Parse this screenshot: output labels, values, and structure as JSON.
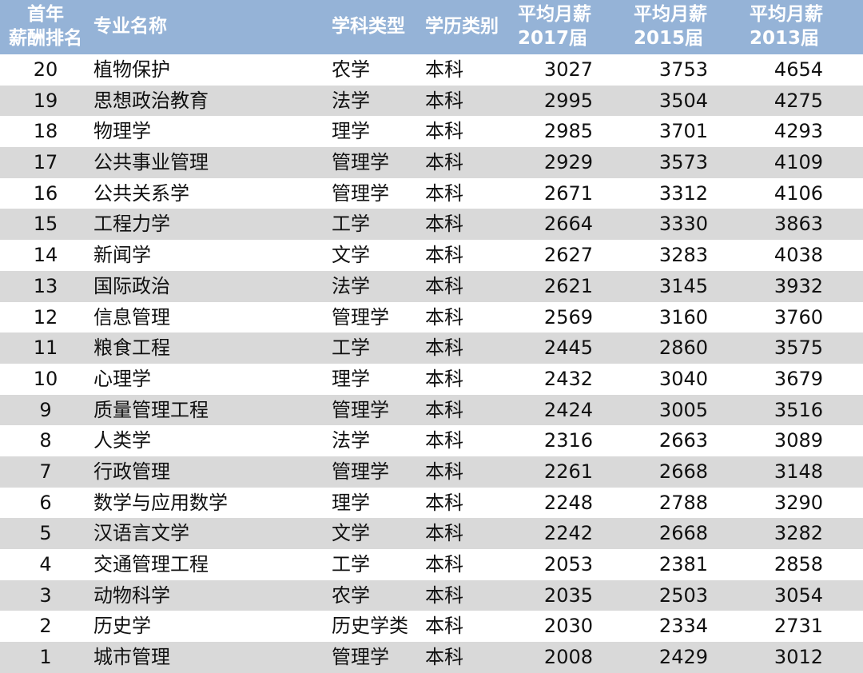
{
  "header": {
    "rank_line1": "首年",
    "rank_line2": "薪酬排名",
    "name": "专业名称",
    "type": "学科类型",
    "edu": "学历类别",
    "y17_line1": "平均月薪",
    "y17_line2": "2017届",
    "y15_line1": "平均月薪",
    "y15_line2": "2015届",
    "y13_line1": "平均月薪",
    "y13_line2": "2013届"
  },
  "colors": {
    "header_bg": "#95b3d7",
    "alt_row": "#d9d9d9"
  },
  "rows": [
    {
      "rank": "20",
      "name": "植物保护",
      "type": "农学",
      "edu": "本科",
      "y17": "3027",
      "y15": "3753",
      "y13": "4654"
    },
    {
      "rank": "19",
      "name": "思想政治教育",
      "type": "法学",
      "edu": "本科",
      "y17": "2995",
      "y15": "3504",
      "y13": "4275"
    },
    {
      "rank": "18",
      "name": "物理学",
      "type": "理学",
      "edu": "本科",
      "y17": "2985",
      "y15": "3701",
      "y13": "4293"
    },
    {
      "rank": "17",
      "name": "公共事业管理",
      "type": "管理学",
      "edu": "本科",
      "y17": "2929",
      "y15": "3573",
      "y13": "4109"
    },
    {
      "rank": "16",
      "name": "公共关系学",
      "type": "管理学",
      "edu": "本科",
      "y17": "2671",
      "y15": "3312",
      "y13": "4106"
    },
    {
      "rank": "15",
      "name": "工程力学",
      "type": "工学",
      "edu": "本科",
      "y17": "2664",
      "y15": "3330",
      "y13": "3863"
    },
    {
      "rank": "14",
      "name": "新闻学",
      "type": "文学",
      "edu": "本科",
      "y17": "2627",
      "y15": "3283",
      "y13": "4038"
    },
    {
      "rank": "13",
      "name": "国际政治",
      "type": "法学",
      "edu": "本科",
      "y17": "2621",
      "y15": "3145",
      "y13": "3932"
    },
    {
      "rank": "12",
      "name": "信息管理",
      "type": "管理学",
      "edu": "本科",
      "y17": "2569",
      "y15": "3160",
      "y13": "3760"
    },
    {
      "rank": "11",
      "name": "粮食工程",
      "type": "工学",
      "edu": "本科",
      "y17": "2445",
      "y15": "2860",
      "y13": "3575"
    },
    {
      "rank": "10",
      "name": "心理学",
      "type": "理学",
      "edu": "本科",
      "y17": "2432",
      "y15": "3040",
      "y13": "3679"
    },
    {
      "rank": "9",
      "name": "质量管理工程",
      "type": "管理学",
      "edu": "本科",
      "y17": "2424",
      "y15": "3005",
      "y13": "3516"
    },
    {
      "rank": "8",
      "name": "人类学",
      "type": "法学",
      "edu": "本科",
      "y17": "2316",
      "y15": "2663",
      "y13": "3089"
    },
    {
      "rank": "7",
      "name": "行政管理",
      "type": "管理学",
      "edu": "本科",
      "y17": "2261",
      "y15": "2668",
      "y13": "3148"
    },
    {
      "rank": "6",
      "name": "数学与应用数学",
      "type": "理学",
      "edu": "本科",
      "y17": "2248",
      "y15": "2788",
      "y13": "3290"
    },
    {
      "rank": "5",
      "name": "汉语言文学",
      "type": "文学",
      "edu": "本科",
      "y17": "2242",
      "y15": "2668",
      "y13": "3282"
    },
    {
      "rank": "4",
      "name": "交通管理工程",
      "type": "工学",
      "edu": "本科",
      "y17": "2053",
      "y15": "2381",
      "y13": "2858"
    },
    {
      "rank": "3",
      "name": "动物科学",
      "type": "农学",
      "edu": "本科",
      "y17": "2035",
      "y15": "2503",
      "y13": "3054"
    },
    {
      "rank": "2",
      "name": "历史学",
      "type": "历史学类",
      "edu": "本科",
      "y17": "2030",
      "y15": "2334",
      "y13": "2731"
    },
    {
      "rank": "1",
      "name": "城市管理",
      "type": "管理学",
      "edu": "本科",
      "y17": "2008",
      "y15": "2429",
      "y13": "3012"
    }
  ]
}
